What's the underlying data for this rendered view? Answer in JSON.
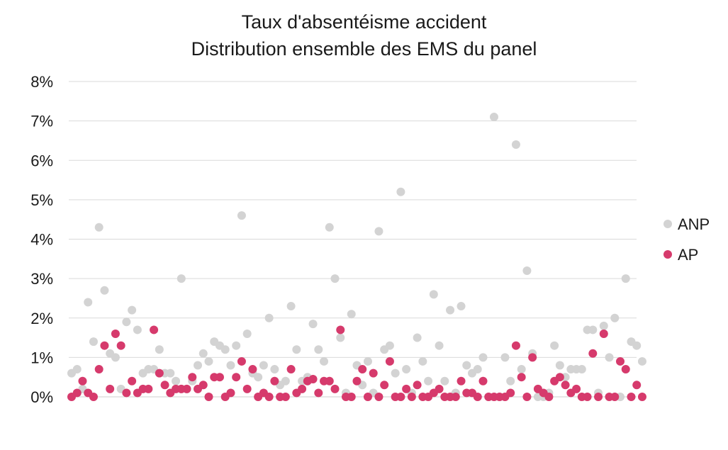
{
  "chart_data": {
    "type": "scatter",
    "title": "Taux d'absentéisme accident",
    "subtitle": "Distribution ensemble des EMS du panel",
    "xlabel": "",
    "ylabel": "",
    "ylim": [
      0,
      8
    ],
    "y_unit": "%",
    "y_ticks": [
      "0%",
      "1%",
      "2%",
      "3%",
      "4%",
      "5%",
      "6%",
      "7%",
      "8%"
    ],
    "grid": "horizontal",
    "legend_position": "right",
    "x_count": 105,
    "series": [
      {
        "name": "ANP",
        "color": "#d3d3d3",
        "values": [
          0.6,
          0.7,
          0.2,
          2.4,
          1.4,
          4.3,
          2.7,
          1.1,
          1.0,
          0.2,
          1.9,
          2.2,
          1.7,
          0.6,
          0.7,
          0.7,
          1.2,
          0.6,
          0.6,
          0.4,
          3.0,
          0.2,
          0.4,
          0.8,
          1.1,
          0.9,
          1.4,
          1.3,
          1.2,
          0.8,
          1.3,
          4.6,
          1.6,
          0.6,
          0.5,
          0.8,
          2.0,
          0.7,
          0.3,
          0.4,
          2.3,
          1.2,
          0.4,
          0.5,
          1.85,
          1.2,
          0.9,
          4.3,
          3.0,
          1.5,
          0.1,
          2.1,
          0.8,
          0.3,
          0.9,
          0.1,
          4.2,
          1.2,
          1.3,
          0.6,
          5.2,
          0.7,
          0.1,
          1.5,
          0.9,
          0.4,
          2.6,
          1.3,
          0.4,
          2.2,
          0.1,
          2.3,
          0.8,
          0.6,
          0.7,
          1.0,
          0.0,
          7.1,
          0.0,
          1.0,
          0.4,
          6.4,
          0.7,
          3.2,
          1.1,
          0.0,
          0.0,
          0.1,
          1.3,
          0.8,
          0.5,
          0.7,
          0.7,
          0.7,
          1.7,
          1.7,
          0.1,
          1.8,
          1.0,
          2.0,
          0.0,
          3.0,
          1.4,
          1.3,
          0.9
        ]
      },
      {
        "name": "AP",
        "color": "#d63a6c",
        "values": [
          0.0,
          0.1,
          0.4,
          0.1,
          0.0,
          0.7,
          1.3,
          0.2,
          1.6,
          1.3,
          0.1,
          0.4,
          0.1,
          0.2,
          0.2,
          1.7,
          0.6,
          0.3,
          0.1,
          0.2,
          0.2,
          0.2,
          0.5,
          0.2,
          0.3,
          0.0,
          0.5,
          0.5,
          0.0,
          0.1,
          0.5,
          0.9,
          0.2,
          0.7,
          0.0,
          0.1,
          0.0,
          0.4,
          0.0,
          0.0,
          0.7,
          0.1,
          0.2,
          0.4,
          0.45,
          0.1,
          0.4,
          0.4,
          0.2,
          1.7,
          0.0,
          0.0,
          0.4,
          0.7,
          0.0,
          0.6,
          0.0,
          0.3,
          0.9,
          0.0,
          0.0,
          0.2,
          0.0,
          0.3,
          0.0,
          0.0,
          0.1,
          0.2,
          0.0,
          0.0,
          0.0,
          0.4,
          0.1,
          0.1,
          0.0,
          0.4,
          0.0,
          0.0,
          0.0,
          0.0,
          0.1,
          1.3,
          0.5,
          0.0,
          1.0,
          0.2,
          0.1,
          0.0,
          0.4,
          0.5,
          0.3,
          0.1,
          0.2,
          0.0,
          0.0,
          1.1,
          0.0,
          1.6,
          0.0,
          0.0,
          0.9,
          0.7,
          0.0,
          0.3,
          0.0
        ]
      }
    ]
  }
}
